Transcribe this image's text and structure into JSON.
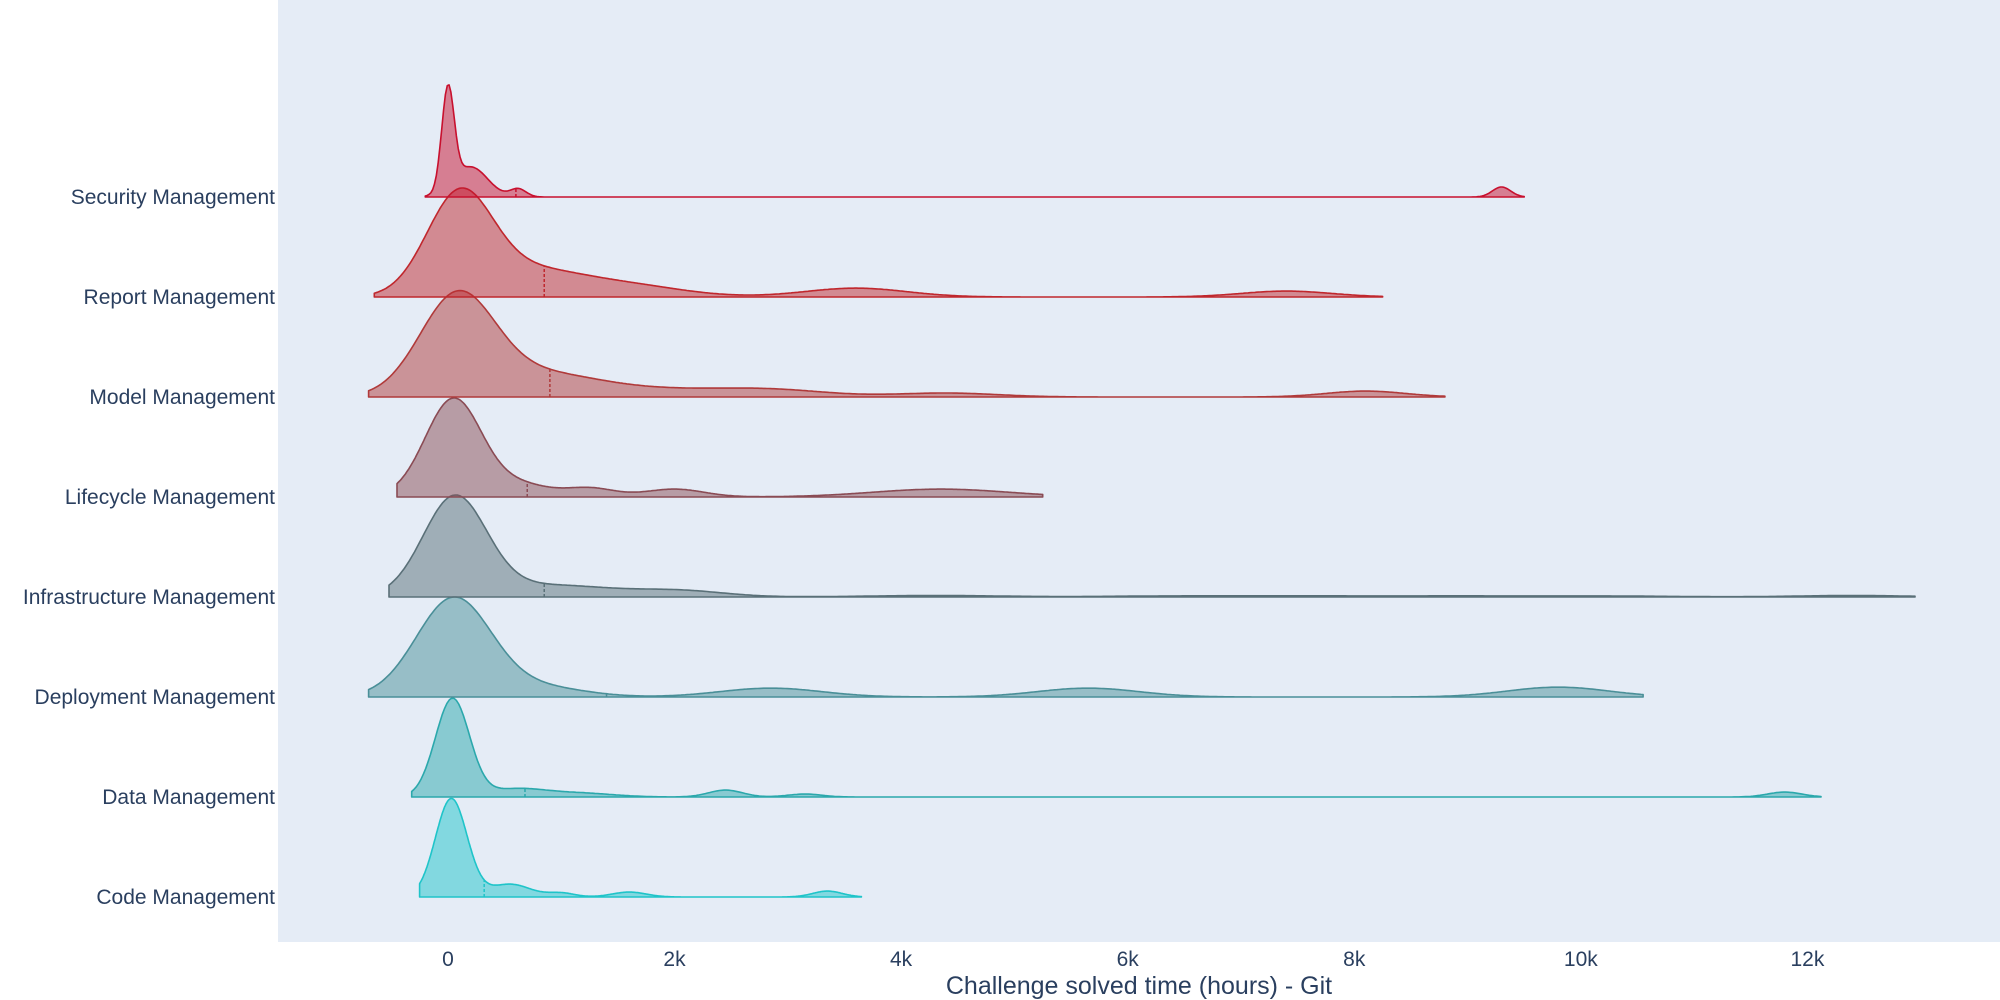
{
  "chart_data": {
    "type": "ridgeline",
    "xlabel": "Challenge solved time (hours) - Git",
    "x_ticks": [
      0,
      2000,
      4000,
      6000,
      8000,
      10000,
      12000
    ],
    "x_tick_labels": [
      "0",
      "2k",
      "4k",
      "6k",
      "8k",
      "10k",
      "12k"
    ],
    "xlim": [
      -1500,
      13700
    ],
    "grid": false,
    "series": [
      {
        "name": "Security Management",
        "color": "#c8102e",
        "range": [
          -200,
          9500
        ],
        "mean_marker": 600,
        "peak_height": 1.52,
        "bumps": [
          [
            0,
            55,
            1.0
          ],
          [
            200,
            150,
            0.3
          ],
          [
            620,
            70,
            0.08
          ],
          [
            9300,
            80,
            0.1
          ]
        ]
      },
      {
        "name": "Report Management",
        "color": "#c0272d",
        "range": [
          -650,
          8250
        ],
        "mean_marker": 850,
        "peak_height": 1.49,
        "bumps": [
          [
            100,
            290,
            1.0
          ],
          [
            700,
            450,
            0.25
          ],
          [
            1550,
            500,
            0.12
          ],
          [
            3600,
            450,
            0.09
          ],
          [
            7400,
            400,
            0.06
          ]
        ]
      },
      {
        "name": "Model Management",
        "color": "#b03a3a",
        "range": [
          -700,
          8800
        ],
        "mean_marker": 900,
        "peak_height": 1.49,
        "bumps": [
          [
            80,
            330,
            1.0
          ],
          [
            800,
            500,
            0.22
          ],
          [
            1800,
            600,
            0.07
          ],
          [
            2850,
            500,
            0.07
          ],
          [
            4400,
            450,
            0.04
          ],
          [
            8100,
            350,
            0.06
          ]
        ]
      },
      {
        "name": "Lifecycle Management",
        "color": "#8a4b54",
        "range": [
          -450,
          5250
        ],
        "mean_marker": 700,
        "peak_height": 1.49,
        "bumps": [
          [
            50,
            250,
            1.0
          ],
          [
            650,
            250,
            0.12
          ],
          [
            1250,
            220,
            0.09
          ],
          [
            2000,
            260,
            0.08
          ],
          [
            4350,
            600,
            0.08
          ]
        ]
      },
      {
        "name": "Infrastructure Management",
        "color": "#5a7078",
        "range": [
          -520,
          12950
        ],
        "mean_marker": 850,
        "peak_height": 1.49,
        "bumps": [
          [
            60,
            280,
            1.0
          ],
          [
            900,
            550,
            0.12
          ],
          [
            2050,
            400,
            0.06
          ],
          [
            4300,
            600,
            0.015
          ],
          [
            6400,
            600,
            0.01
          ],
          [
            7600,
            600,
            0.01
          ],
          [
            8900,
            600,
            0.01
          ],
          [
            10200,
            600,
            0.01
          ],
          [
            12400,
            500,
            0.015
          ]
        ]
      },
      {
        "name": "Deployment Management",
        "color": "#4a8f98",
        "range": [
          -700,
          10550
        ],
        "mean_marker": 1400,
        "peak_height": 1.49,
        "bumps": [
          [
            50,
            330,
            1.0
          ],
          [
            800,
            400,
            0.1
          ],
          [
            2850,
            450,
            0.09
          ],
          [
            5650,
            450,
            0.09
          ],
          [
            9800,
            450,
            0.1
          ]
        ]
      },
      {
        "name": "Data Management",
        "color": "#2ba8ac",
        "range": [
          -320,
          12120
        ],
        "mean_marker": 680,
        "peak_height": 1.49,
        "bumps": [
          [
            40,
            150,
            1.0
          ],
          [
            600,
            250,
            0.08
          ],
          [
            1150,
            300,
            0.04
          ],
          [
            2450,
            150,
            0.07
          ],
          [
            3150,
            150,
            0.03
          ],
          [
            11800,
            150,
            0.05
          ]
        ]
      },
      {
        "name": "Code Management",
        "color": "#1fc4c9",
        "range": [
          -250,
          3650
        ],
        "mean_marker": 320,
        "peak_height": 1.49,
        "bumps": [
          [
            30,
            140,
            1.0
          ],
          [
            550,
            180,
            0.13
          ],
          [
            1000,
            120,
            0.04
          ],
          [
            1600,
            150,
            0.05
          ],
          [
            3350,
            130,
            0.06
          ]
        ]
      }
    ]
  }
}
